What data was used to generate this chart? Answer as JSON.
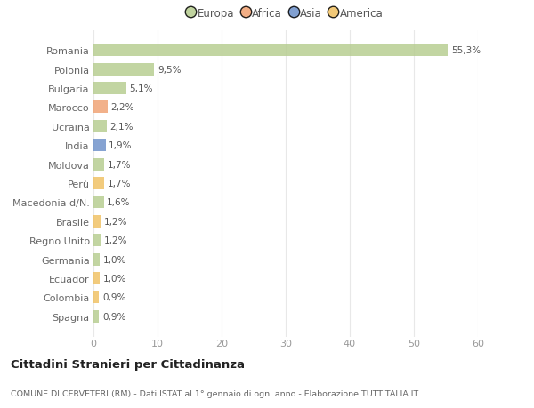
{
  "categories": [
    "Romania",
    "Polonia",
    "Bulgaria",
    "Marocco",
    "Ucraina",
    "India",
    "Moldova",
    "Perù",
    "Macedonia d/N.",
    "Brasile",
    "Regno Unito",
    "Germania",
    "Ecuador",
    "Colombia",
    "Spagna"
  ],
  "values": [
    55.3,
    9.5,
    5.1,
    2.2,
    2.1,
    1.9,
    1.7,
    1.7,
    1.6,
    1.2,
    1.2,
    1.0,
    1.0,
    0.9,
    0.9
  ],
  "labels": [
    "55,3%",
    "9,5%",
    "5,1%",
    "2,2%",
    "2,1%",
    "1,9%",
    "1,7%",
    "1,7%",
    "1,6%",
    "1,2%",
    "1,2%",
    "1,0%",
    "1,0%",
    "0,9%",
    "0,9%"
  ],
  "colors": [
    "#b5cc8e",
    "#b5cc8e",
    "#b5cc8e",
    "#f0a070",
    "#b5cc8e",
    "#6b8fc9",
    "#b5cc8e",
    "#f0c060",
    "#b5cc8e",
    "#f0c060",
    "#b5cc8e",
    "#b5cc8e",
    "#f0c060",
    "#f0c060",
    "#b5cc8e"
  ],
  "legend": {
    "Europa": "#b5cc8e",
    "Africa": "#f0a070",
    "Asia": "#6b8fc9",
    "America": "#f0c060"
  },
  "xlim": [
    0,
    60
  ],
  "xticks": [
    0,
    10,
    20,
    30,
    40,
    50,
    60
  ],
  "title": "Cittadini Stranieri per Cittadinanza",
  "subtitle": "COMUNE DI CERVETERI (RM) - Dati ISTAT al 1° gennaio di ogni anno - Elaborazione TUTTITALIA.IT",
  "background_color": "#ffffff",
  "grid_color": "#e8e8e8",
  "bar_height": 0.65
}
